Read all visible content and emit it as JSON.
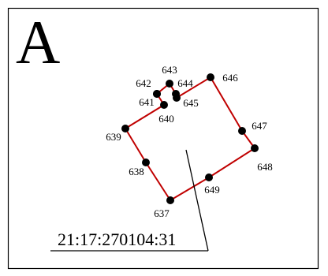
{
  "sheet": {
    "letter": "A"
  },
  "parcel": {
    "cadastral_number": "21:17:270104:31",
    "boundary_color": "#c00000",
    "point_color": "#000000"
  },
  "points": [
    {
      "id": "637",
      "label": "637"
    },
    {
      "id": "638",
      "label": "638"
    },
    {
      "id": "639",
      "label": "639"
    },
    {
      "id": "640",
      "label": "640"
    },
    {
      "id": "641",
      "label": "641"
    },
    {
      "id": "642",
      "label": "642"
    },
    {
      "id": "643",
      "label": "643"
    },
    {
      "id": "644",
      "label": "644"
    },
    {
      "id": "645",
      "label": "645"
    },
    {
      "id": "646",
      "label": "646"
    },
    {
      "id": "647",
      "label": "647"
    },
    {
      "id": "648",
      "label": "648"
    },
    {
      "id": "649",
      "label": "649"
    }
  ]
}
